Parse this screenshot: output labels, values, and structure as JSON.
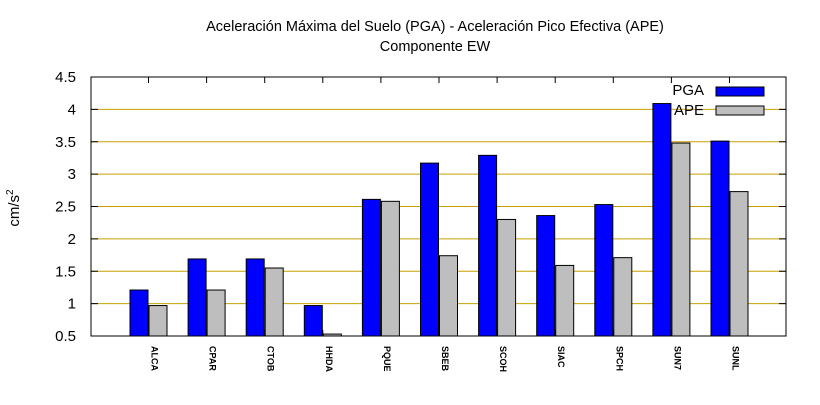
{
  "chart_data": {
    "type": "bar",
    "title": "Aceleración Máxima del Suelo (PGA) -  Aceleración Pico Efectiva (APE)",
    "subtitle": "Componente EW",
    "xlabel": "",
    "ylabel": "cm/s",
    "ylabel_superscript": "2",
    "ylim": [
      0.5,
      4.5
    ],
    "yticks": [
      0.5,
      1,
      1.5,
      2,
      2.5,
      3,
      3.5,
      4,
      4.5
    ],
    "ytick_labels": [
      "0.5",
      "1",
      "1.5",
      "2",
      "2.5",
      "3",
      "3.5",
      "4",
      "4.5"
    ],
    "grid": true,
    "legend_position": "top-right",
    "categories": [
      "ALCA",
      "CPAR",
      "CTOB",
      "HHDA",
      "PQUE",
      "SBEB",
      "SCOH",
      "SIAC",
      "SPCH",
      "SUN7",
      "SUNL"
    ],
    "series": [
      {
        "name": "PGA",
        "color": "#0000ff",
        "values": [
          1.21,
          1.69,
          1.69,
          0.97,
          2.61,
          3.17,
          3.29,
          2.36,
          2.53,
          4.09,
          3.51
        ]
      },
      {
        "name": "APE",
        "color": "#bebebe",
        "values": [
          0.97,
          1.21,
          1.55,
          0.53,
          2.58,
          1.74,
          2.3,
          1.59,
          1.71,
          3.48,
          2.73
        ]
      }
    ],
    "grid_color": "#c8a000"
  }
}
